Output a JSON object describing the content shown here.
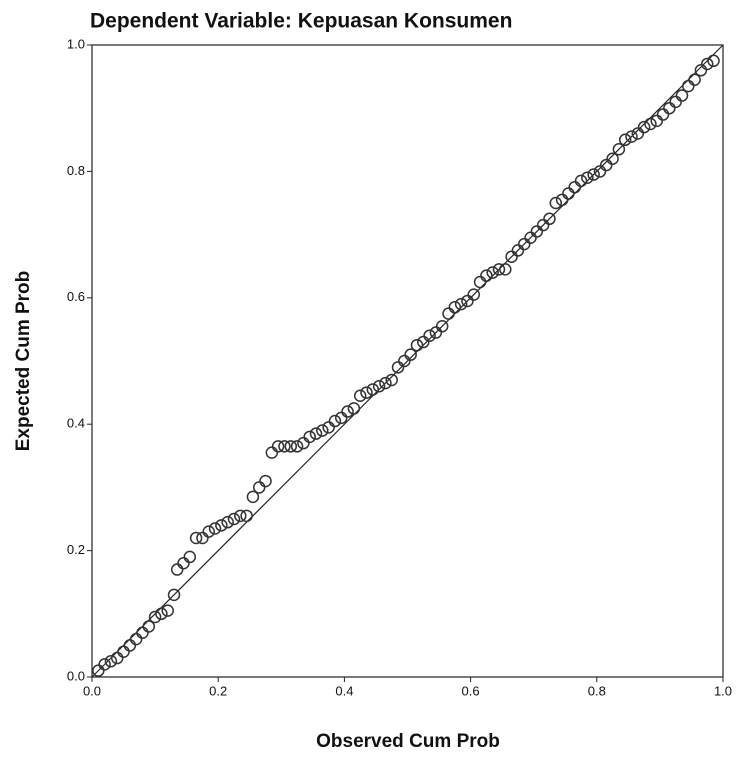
{
  "chart_data": {
    "type": "scatter",
    "title": "Dependent Variable: Kepuasan Konsumen",
    "x_label": "Observed Cum Prob",
    "y_label": "Expected Cum Prob",
    "xlim": [
      0,
      1
    ],
    "ylim": [
      0,
      1
    ],
    "xticks": [
      {
        "value": 0,
        "label": "0.0"
      },
      0.2,
      0.4,
      0.6,
      0.8,
      {
        "value": 1,
        "label": "1.0"
      }
    ],
    "yticks": [
      {
        "value": 0,
        "label": "0.0"
      },
      0.2,
      0.4,
      0.6,
      0.8,
      {
        "value": 1,
        "label": "1.0"
      }
    ],
    "reference_line": true,
    "color": "#333333",
    "x": [
      0.01,
      0.02,
      0.03,
      0.04,
      0.05,
      0.06,
      0.07,
      0.08,
      0.09,
      0.1,
      0.11,
      0.12,
      0.13,
      0.135,
      0.145,
      0.155,
      0.165,
      0.175,
      0.185,
      0.195,
      0.205,
      0.215,
      0.225,
      0.235,
      0.245,
      0.255,
      0.265,
      0.275,
      0.285,
      0.295,
      0.305,
      0.315,
      0.325,
      0.335,
      0.345,
      0.355,
      0.365,
      0.375,
      0.385,
      0.395,
      0.405,
      0.415,
      0.425,
      0.435,
      0.445,
      0.455,
      0.465,
      0.475,
      0.485,
      0.495,
      0.505,
      0.515,
      0.525,
      0.535,
      0.545,
      0.555,
      0.565,
      0.575,
      0.585,
      0.595,
      0.605,
      0.615,
      0.625,
      0.635,
      0.645,
      0.655,
      0.665,
      0.675,
      0.685,
      0.695,
      0.705,
      0.715,
      0.725,
      0.735,
      0.745,
      0.755,
      0.765,
      0.775,
      0.785,
      0.795,
      0.805,
      0.815,
      0.825,
      0.835,
      0.845,
      0.855,
      0.865,
      0.875,
      0.885,
      0.895,
      0.905,
      0.915,
      0.925,
      0.935,
      0.945,
      0.955,
      0.965,
      0.975,
      0.985
    ],
    "values": [
      0.01,
      0.02,
      0.025,
      0.03,
      0.04,
      0.05,
      0.06,
      0.07,
      0.08,
      0.095,
      0.1,
      0.105,
      0.13,
      0.17,
      0.18,
      0.19,
      0.22,
      0.22,
      0.23,
      0.235,
      0.24,
      0.245,
      0.25,
      0.255,
      0.255,
      0.285,
      0.3,
      0.31,
      0.355,
      0.365,
      0.365,
      0.365,
      0.365,
      0.37,
      0.38,
      0.385,
      0.39,
      0.395,
      0.405,
      0.41,
      0.42,
      0.425,
      0.445,
      0.45,
      0.455,
      0.46,
      0.465,
      0.47,
      0.49,
      0.5,
      0.51,
      0.525,
      0.53,
      0.54,
      0.545,
      0.555,
      0.575,
      0.585,
      0.59,
      0.595,
      0.605,
      0.625,
      0.635,
      0.64,
      0.645,
      0.645,
      0.665,
      0.675,
      0.685,
      0.695,
      0.705,
      0.715,
      0.725,
      0.75,
      0.755,
      0.765,
      0.775,
      0.785,
      0.79,
      0.795,
      0.8,
      0.81,
      0.82,
      0.835,
      0.85,
      0.855,
      0.86,
      0.87,
      0.875,
      0.88,
      0.89,
      0.9,
      0.91,
      0.92,
      0.935,
      0.945,
      0.96,
      0.97,
      0.975
    ]
  }
}
